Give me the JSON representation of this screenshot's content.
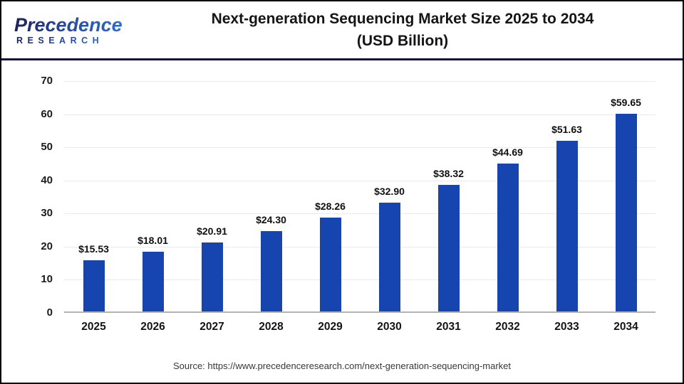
{
  "logo": {
    "name": "Precedence",
    "subtitle": "RESEARCH"
  },
  "title": {
    "line1": "Next-generation Sequencing Market Size 2025 to 2034",
    "line2": "(USD Billion)"
  },
  "source": "Source: https://www.precedenceresearch.com/next-generation-sequencing-market",
  "colors": {
    "bar": "#1745af",
    "divider": "#13123d",
    "gridline": "#e9e9e9",
    "axis_line": "#b3b3b3",
    "logo_dark": "#1b2258",
    "logo_light": "#2e6fd0"
  },
  "chart_data": {
    "type": "bar",
    "title": "Next-generation Sequencing Market Size 2025 to 2034 (USD Billion)",
    "categories": [
      "2025",
      "2026",
      "2027",
      "2028",
      "2029",
      "2030",
      "2031",
      "2032",
      "2033",
      "2034"
    ],
    "values": [
      15.53,
      18.01,
      20.91,
      24.3,
      28.26,
      32.9,
      38.32,
      44.69,
      51.63,
      59.65
    ],
    "labels": [
      "$15.53",
      "$18.01",
      "$20.91",
      "$24.30",
      "$28.26",
      "$32.90",
      "$38.32",
      "$44.69",
      "$51.63",
      "$59.65"
    ],
    "xlabel": "",
    "ylabel": "",
    "ylim": [
      0,
      70
    ],
    "yticks": [
      0,
      10,
      20,
      30,
      40,
      50,
      60,
      70
    ],
    "grid": true,
    "legend": false,
    "bar_color": "#1745af"
  }
}
